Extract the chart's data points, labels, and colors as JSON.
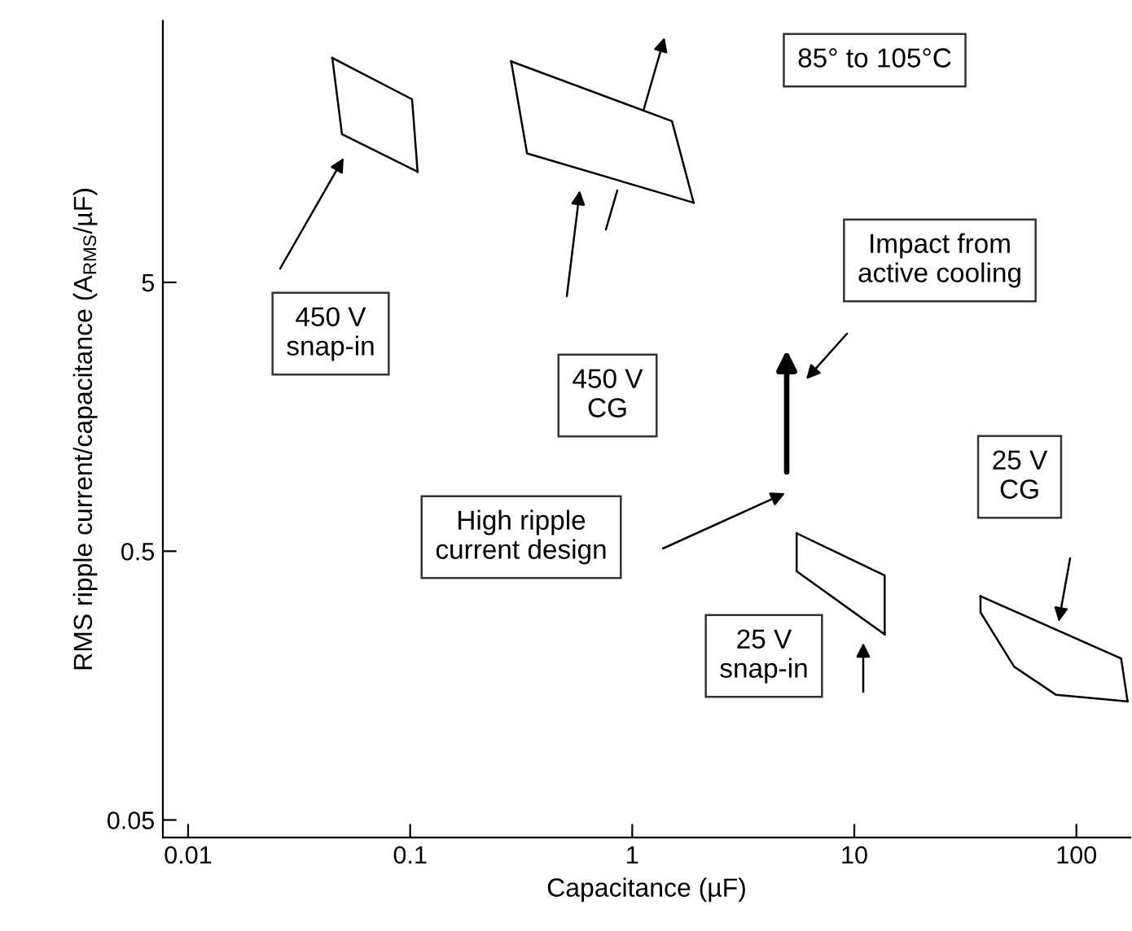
{
  "chart_data": {
    "type": "line",
    "xlabel": "Capacitance (µF)",
    "ylabel": "RMS ripple current/capacitance (A$_{RMS}$/µF)",
    "log": "xy",
    "grid": false,
    "xlim": [
      0.0077,
      175
    ],
    "xticks": [
      0.01,
      0.1,
      1,
      10,
      100
    ],
    "ylim": [
      0.043,
      47
    ],
    "yticks": [
      0.05,
      0.5,
      5
    ],
    "series": [
      {
        "color": "#000000",
        "x": [
          0.0446,
          0.102,
          0.108
        ],
        "values": [
          34.2,
          24,
          12.9
        ]
      },
      {
        "color": "#000000",
        "x": [
          0.0446,
          0.0493,
          0.108
        ],
        "values": [
          34.2,
          17.8,
          12.9
        ]
      },
      {
        "color": "#000000",
        "x": [
          0.285,
          1.51,
          1.89
        ],
        "values": [
          33.2,
          19.9,
          9.9
        ]
      },
      {
        "color": "#000000",
        "x": [
          0.285,
          0.336,
          1.89
        ],
        "values": [
          33.2,
          15.1,
          9.9
        ]
      },
      {
        "color": "#000000",
        "x": [
          5.5,
          13.7,
          13.7
        ],
        "values": [
          0.583,
          0.406,
          0.245
        ]
      },
      {
        "color": "#000000",
        "x": [
          5.5,
          5.5,
          13.7
        ],
        "values": [
          0.583,
          0.421,
          0.245
        ]
      },
      {
        "color": "#000000",
        "x": [
          37,
          159,
          170
        ],
        "values": [
          0.34,
          0.1995,
          0.138
        ]
      },
      {
        "color": "#000000",
        "x": [
          37,
          37,
          52.4,
          81,
          170
        ],
        "values": [
          0.34,
          0.296,
          0.186,
          0.146,
          0.138
        ]
      }
    ],
    "annotations": [
      "450 V\nsnap-in",
      "450 V\nCG",
      "85° to 105°C",
      "Impact from\nactive cooling",
      "High ripple\ncurrent design",
      "25 V\nCG",
      "25 V\nsnap-in"
    ]
  }
}
